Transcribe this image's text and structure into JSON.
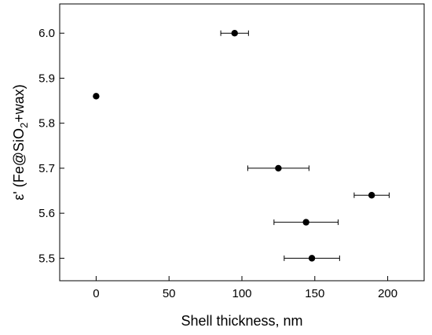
{
  "chart_data": {
    "type": "scatter",
    "xlabel": "Shell thickness, nm",
    "ylabel": {
      "prefix": "ε' (Fe@SiO",
      "subscript": "2",
      "suffix": "+wax)"
    },
    "xlim": [
      -25,
      225
    ],
    "ylim": [
      5.45,
      6.065
    ],
    "x_ticks": [
      0,
      50,
      100,
      150,
      200
    ],
    "x_tick_labels": [
      "0",
      "50",
      "100",
      "150",
      "200"
    ],
    "y_ticks": [
      5.5,
      5.6,
      5.7,
      5.8,
      5.9,
      6.0
    ],
    "y_tick_labels": [
      "5.5",
      "5.6",
      "5.7",
      "5.8",
      "5.9",
      "6.0"
    ],
    "grid": false,
    "marker": "filled-circle",
    "marker_color": "#000000",
    "series": [
      {
        "points": [
          {
            "x": 0,
            "y": 5.86,
            "xerr": 0
          },
          {
            "x": 95,
            "y": 6.0,
            "xerr": 9.5
          },
          {
            "x": 125,
            "y": 5.7,
            "xerr": 21
          },
          {
            "x": 189,
            "y": 5.64,
            "xerr": 12
          },
          {
            "x": 144,
            "y": 5.58,
            "xerr": 22
          },
          {
            "x": 148,
            "y": 5.5,
            "xerr": 19
          }
        ]
      }
    ]
  }
}
